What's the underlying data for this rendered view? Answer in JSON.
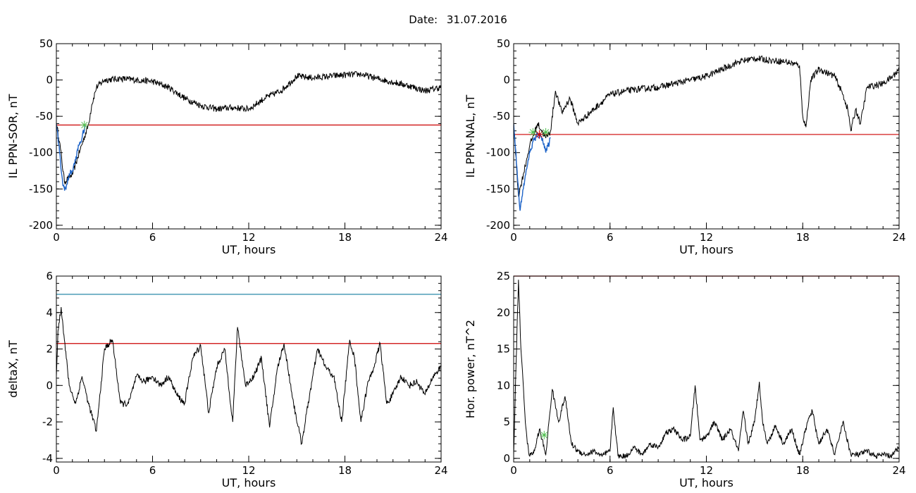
{
  "title": {
    "label": "Date:",
    "value": "31.07.2016"
  },
  "chart_data": [
    {
      "type": "line",
      "xlabel": "UT, hours",
      "ylabel": "IL PPN-SOR, nT",
      "xlim": [
        0,
        24
      ],
      "ylim": [
        -205,
        50
      ],
      "xticks": [
        0,
        6,
        12,
        18,
        24
      ],
      "yticks": [
        -200,
        -150,
        -100,
        -50,
        0,
        50
      ],
      "series": [
        {
          "color": "#000000",
          "x": [
            0,
            0.2,
            0.5,
            1,
            1.5,
            2,
            2.2,
            2.5,
            3,
            4,
            5,
            6,
            7,
            8,
            9,
            10,
            11,
            12,
            13,
            14,
            15,
            16,
            17,
            18,
            19,
            20,
            21,
            22,
            23,
            24
          ],
          "y": [
            -60,
            -85,
            -140,
            -130,
            -95,
            -62,
            -35,
            -10,
            0,
            2,
            0,
            -2,
            -10,
            -25,
            -35,
            -40,
            -38,
            -40,
            -25,
            -15,
            5,
            3,
            5,
            7,
            8,
            2,
            -3,
            -8,
            -15,
            -10
          ]
        },
        {
          "color": "#1e64c8",
          "x": [
            0,
            0.2,
            0.4,
            0.6,
            0.8,
            1,
            1.2,
            1.4,
            1.6,
            1.8
          ],
          "y": [
            -60,
            -100,
            -145,
            -150,
            -130,
            -125,
            -110,
            -90,
            -80,
            -62
          ]
        }
      ],
      "hlines": [
        {
          "y": -62,
          "color": "#cc0000"
        }
      ],
      "markers": [
        {
          "x": 1.75,
          "y": -62,
          "color": "#50c050"
        }
      ]
    },
    {
      "type": "line",
      "xlabel": "UT, hours",
      "ylabel": "IL PPN-NAL, nT",
      "xlim": [
        0,
        24
      ],
      "ylim": [
        -205,
        50
      ],
      "xticks": [
        0,
        6,
        12,
        18,
        24
      ],
      "yticks": [
        -200,
        -150,
        -100,
        -50,
        0,
        50
      ],
      "series": [
        {
          "color": "#000000",
          "x": [
            0,
            0.3,
            0.6,
            1,
            1.5,
            2,
            2.3,
            2.6,
            3,
            3.5,
            4,
            5,
            6,
            7,
            8,
            9,
            10,
            11,
            12,
            13,
            14,
            15,
            16,
            17,
            17.8,
            18,
            18.2,
            18.5,
            19,
            20,
            20.5,
            20.8,
            21,
            21.3,
            21.6,
            22,
            23,
            23.6,
            24
          ],
          "y": [
            -60,
            -160,
            -130,
            -90,
            -60,
            -80,
            -70,
            -15,
            -45,
            -25,
            -60,
            -40,
            -20,
            -15,
            -12,
            -10,
            -5,
            0,
            5,
            15,
            25,
            30,
            27,
            25,
            20,
            -50,
            -65,
            0,
            15,
            5,
            -20,
            -40,
            -70,
            -40,
            -60,
            -10,
            -5,
            5,
            15
          ]
        },
        {
          "color": "#1e64c8",
          "x": [
            0,
            0.2,
            0.4,
            0.6,
            0.9,
            1.2,
            1.5,
            1.8,
            2,
            2.3
          ],
          "y": [
            -60,
            -120,
            -180,
            -150,
            -110,
            -85,
            -75,
            -80,
            -100,
            -80
          ]
        }
      ],
      "hlines": [
        {
          "y": -75,
          "color": "#cc0000"
        }
      ],
      "markers": [
        {
          "x": 1.2,
          "y": -72,
          "color": "#50c050"
        },
        {
          "x": 1.6,
          "y": -75,
          "color": "#cc0000"
        },
        {
          "x": 2.0,
          "y": -72,
          "color": "#50c050"
        }
      ]
    },
    {
      "type": "line",
      "xlabel": "UT, hours",
      "ylabel": "deltaX, nT",
      "xlim": [
        0,
        24
      ],
      "ylim": [
        -4.2,
        6
      ],
      "xticks": [
        0,
        6,
        12,
        18,
        24
      ],
      "yticks": [
        -4,
        -2,
        0,
        2,
        4,
        6
      ],
      "series": [
        {
          "color": "#000000",
          "x": [
            0,
            0.1,
            0.3,
            0.5,
            0.8,
            1.2,
            1.6,
            2.0,
            2.5,
            3.0,
            3.5,
            4,
            4.5,
            5,
            5.5,
            6,
            6.5,
            7,
            7.5,
            8,
            8.5,
            9,
            9.5,
            10,
            10.5,
            11,
            11.3,
            11.8,
            12.3,
            12.8,
            13.3,
            13.8,
            14.2,
            14.8,
            15.3,
            15.8,
            16.3,
            16.8,
            17.3,
            17.8,
            18.3,
            18.6,
            19,
            19.4,
            19.8,
            20.2,
            20.6,
            21,
            21.5,
            22,
            22.5,
            23,
            23.5,
            24
          ],
          "y": [
            0.5,
            3.0,
            4.3,
            2.5,
            0,
            -1.0,
            0.5,
            -1.0,
            -2.5,
            2.0,
            2.5,
            -1.0,
            -1.0,
            0.5,
            0.2,
            0.5,
            0.0,
            0.5,
            -0.5,
            -1.0,
            1.5,
            2.2,
            -1.5,
            1.0,
            2.0,
            -2.0,
            3.2,
            0.0,
            0.5,
            1.5,
            -2.3,
            1.0,
            2.3,
            -1.0,
            -3.2,
            -0.5,
            2.0,
            1.0,
            0.5,
            -2.0,
            2.5,
            1.5,
            -2.0,
            0.0,
            1.0,
            2.3,
            -1.0,
            -0.5,
            0.5,
            0.0,
            0.2,
            -0.5,
            0.5,
            1.0
          ]
        }
      ],
      "hlines": [
        {
          "y": 5.0,
          "color": "#2a8aa8"
        },
        {
          "y": 2.3,
          "color": "#cc0000"
        }
      ],
      "markers": []
    },
    {
      "type": "line",
      "xlabel": "UT, hours",
      "ylabel": "Hor. power, nT^2",
      "xlim": [
        0,
        24
      ],
      "ylim": [
        -0.5,
        25
      ],
      "xticks": [
        0,
        6,
        12,
        18,
        24
      ],
      "yticks": [
        0,
        5,
        10,
        15,
        20,
        25
      ],
      "series": [
        {
          "color": "#000000",
          "x": [
            0,
            0.15,
            0.3,
            0.45,
            0.55,
            0.7,
            0.85,
            1.0,
            1.3,
            1.6,
            2.0,
            2.4,
            2.8,
            3.2,
            3.6,
            4.0,
            4.5,
            5,
            5.5,
            6,
            6.2,
            6.5,
            7,
            7.5,
            8,
            8.5,
            9,
            9.5,
            10,
            10.5,
            11,
            11.3,
            11.6,
            12,
            12.5,
            13,
            13.5,
            14,
            14.3,
            14.6,
            15,
            15.3,
            15.5,
            15.8,
            16.3,
            16.8,
            17.3,
            17.8,
            18.3,
            18.6,
            19,
            19.5,
            20,
            20.5,
            21,
            21.5,
            22,
            22.5,
            23,
            23.5,
            24
          ],
          "y": [
            0.5,
            13.0,
            24.5,
            15.0,
            12.0,
            6.0,
            2.0,
            0.3,
            1.0,
            4.0,
            0.5,
            9.5,
            5.0,
            8.5,
            2.0,
            1.0,
            0.5,
            1.0,
            0.3,
            1.0,
            7.0,
            0.3,
            0.3,
            1.5,
            0.5,
            2.0,
            1.5,
            3.5,
            4.0,
            2.5,
            3.0,
            10.0,
            2.5,
            3.0,
            5.0,
            2.5,
            4.0,
            1.0,
            6.5,
            2.0,
            5.0,
            10.5,
            5.0,
            2.0,
            4.5,
            2.0,
            4.0,
            0.5,
            5.0,
            6.5,
            2.0,
            4.0,
            0.5,
            5.0,
            0.5,
            0.5,
            1.0,
            0.3,
            0.5,
            0.3,
            1.5
          ]
        }
      ],
      "hlines": [
        {
          "y": 25,
          "color": "#cc0000"
        }
      ],
      "markers": [
        {
          "x": 1.9,
          "y": 3.2,
          "color": "#50c050"
        }
      ]
    }
  ]
}
